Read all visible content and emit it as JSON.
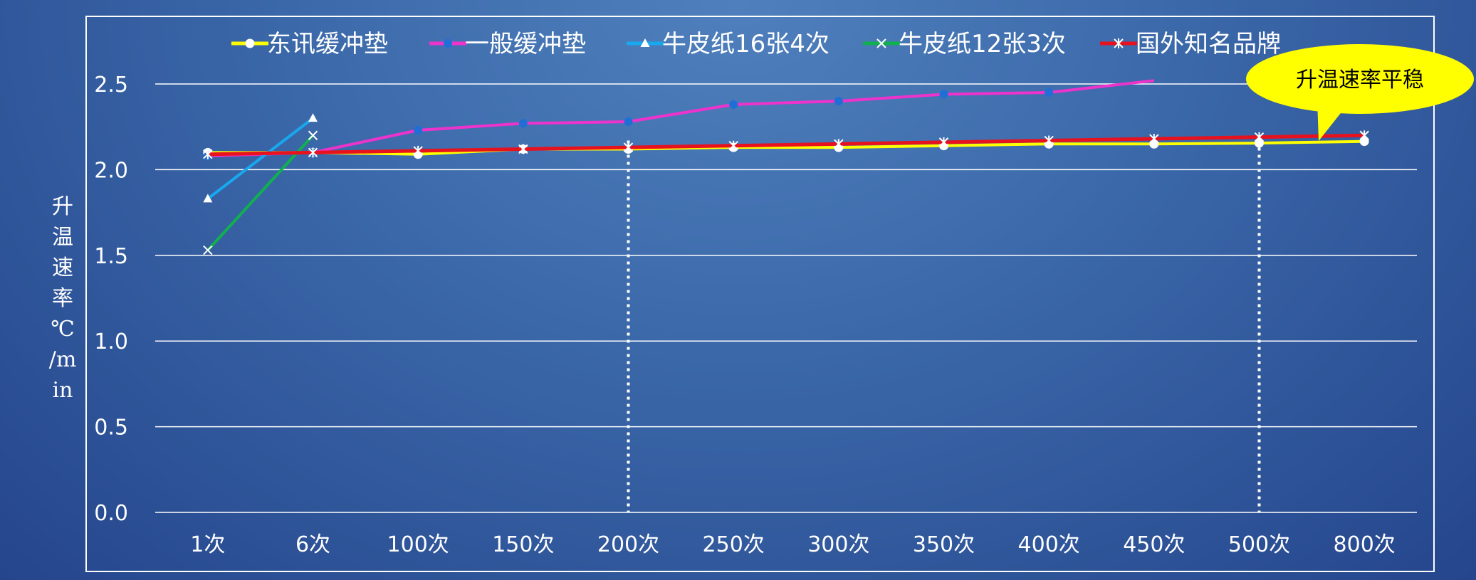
{
  "chart_data": {
    "type": "line",
    "categories": [
      "1次",
      "6次",
      "100次",
      "150次",
      "200次",
      "250次",
      "300次",
      "350次",
      "400次",
      "450次",
      "500次",
      "800次"
    ],
    "ylabel": "升温速率℃/min",
    "ylim": [
      0,
      2.5
    ],
    "yticks": [
      "0.0",
      "0.5",
      "1.0",
      "1.5",
      "2.0",
      "2.5"
    ],
    "grid": "horizontal",
    "legend_position": "top",
    "reference_lines": [
      "200次",
      "500次"
    ],
    "annotation": "升温速率平稳",
    "series": [
      {
        "name": "东讯缓冲垫",
        "color": "#ffff00",
        "marker": "circle",
        "marker_color": "#ffffff",
        "values": [
          2.1,
          2.1,
          2.09,
          2.12,
          2.12,
          2.13,
          2.13,
          2.14,
          2.15,
          2.15,
          2.155,
          2.165
        ]
      },
      {
        "name": "一般缓冲垫",
        "color": "#ee33cc",
        "marker": "dot",
        "marker_color": "#1f6fd6",
        "values": [
          2.08,
          2.1,
          2.23,
          2.27,
          2.28,
          2.38,
          2.4,
          2.44,
          2.45,
          2.52,
          null,
          null
        ]
      },
      {
        "name": "牛皮纸16张4次",
        "color": "#18a8ee",
        "marker": "triangle",
        "marker_color": "#ffffff",
        "values": [
          1.83,
          2.3,
          null,
          null,
          null,
          null,
          null,
          null,
          null,
          null,
          null,
          null
        ]
      },
      {
        "name": "牛皮纸12张3次",
        "color": "#10b050",
        "marker": "x",
        "marker_color": "#ffffff",
        "values": [
          1.53,
          2.2,
          null,
          null,
          null,
          null,
          null,
          null,
          null,
          null,
          null,
          null
        ]
      },
      {
        "name": "国外知名品牌",
        "color": "#e8121e",
        "marker": "star",
        "marker_color": "#ffffff",
        "values": [
          2.09,
          2.1,
          2.11,
          2.12,
          2.13,
          2.14,
          2.15,
          2.16,
          2.17,
          2.18,
          2.19,
          2.2
        ]
      }
    ]
  }
}
